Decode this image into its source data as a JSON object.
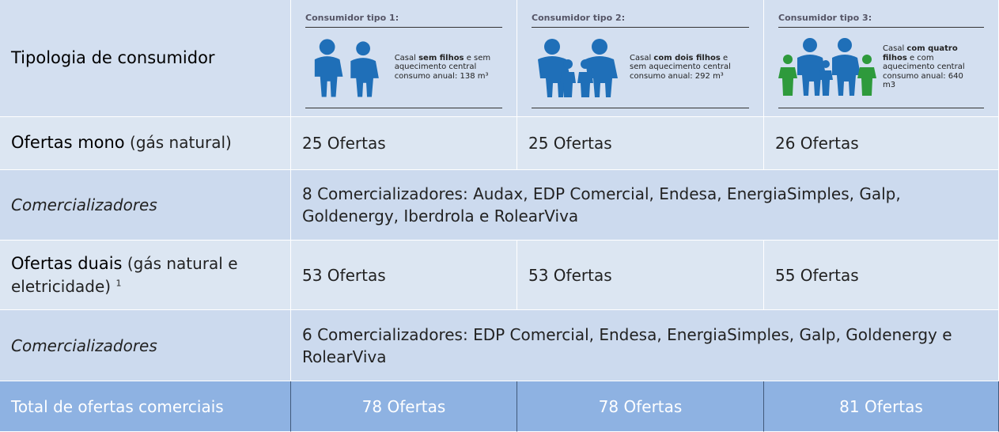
{
  "table": {
    "header": {
      "label": "Tipologia de consumidor",
      "consumers": [
        {
          "title": "Consumidor tipo 1:",
          "pre": "Casal ",
          "bold": "sem filhos",
          "post": " e sem aquecimento central consumo anual: 138 m³"
        },
        {
          "title": "Consumidor tipo 2:",
          "pre": "Casal ",
          "bold": "com dois filhos",
          "post": " e sem aquecimento central consumo anual: 292 m³"
        },
        {
          "title": "Consumidor tipo 3:",
          "pre": "Casal ",
          "bold": "com quatro filhos",
          "post": " e com aquecimento central consumo anual: 640 m3"
        }
      ]
    },
    "mono": {
      "label": "Ofertas mono",
      "note": " (gás natural)",
      "cells": [
        "25 Ofertas",
        "25 Ofertas",
        "26 Ofertas"
      ]
    },
    "mono_sellers": {
      "label": "Comercializadores",
      "text": "8 Comercializadores: Audax, EDP Comercial, Endesa, EnergiaSimples, Galp, Goldenergy, Iberdrola e RolearViva"
    },
    "dual": {
      "label": "Ofertas duais",
      "note": " (gás natural e eletricidade)",
      "footnote": "1",
      "cells": [
        "53 Ofertas",
        "53 Ofertas",
        "55 Ofertas"
      ]
    },
    "dual_sellers": {
      "label": "Comercializadores",
      "text": "6 Comercializadores: EDP Comercial, Endesa, EnergiaSimples, Galp, Goldenergy e RolearViva"
    },
    "total": {
      "label": "Total de ofertas comerciais",
      "cells": [
        "78 Ofertas",
        "78 Ofertas",
        "81 Ofertas"
      ]
    }
  }
}
